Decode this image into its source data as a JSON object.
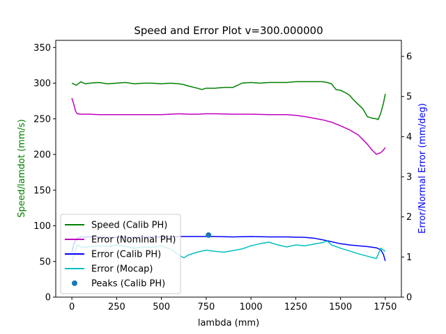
{
  "chart_data": {
    "type": "line",
    "title": "Speed and Error Plot v=300.000000",
    "xlabel": "lambda (mm)",
    "ylabel_left": "Speed/lamdot (mm/s)",
    "ylabel_right": "Error/Normal Error (mm/deg)",
    "ylabel_left_color": "#008000",
    "ylabel_right_color": "#0000ff",
    "xlim": [
      -90,
      1840
    ],
    "ylim_left": [
      0,
      360
    ],
    "ylim_right": [
      0,
      6.4
    ],
    "x_ticks": [
      0,
      250,
      500,
      750,
      1000,
      1250,
      1500,
      1750
    ],
    "x_tick_labels": [
      "0",
      "250",
      "500",
      "750",
      "1000",
      "1250",
      "1500",
      "1750"
    ],
    "y_left_ticks": [
      0,
      50,
      100,
      150,
      200,
      250,
      300,
      350
    ],
    "y_left_tick_labels": [
      "0",
      "50",
      "100",
      "150",
      "200",
      "250",
      "300",
      "350"
    ],
    "y_right_ticks": [
      0,
      1,
      2,
      3,
      4,
      5,
      6
    ],
    "y_right_tick_labels": [
      "0",
      "1",
      "2",
      "3",
      "4",
      "5",
      "6"
    ],
    "grid": false,
    "legend_position": "lower-left",
    "series": [
      {
        "name": "Speed (Calib PH)",
        "color": "#008000",
        "axis": "left",
        "x": [
          0,
          25,
          50,
          75,
          100,
          150,
          200,
          250,
          300,
          350,
          400,
          450,
          500,
          550,
          600,
          625,
          650,
          700,
          725,
          750,
          800,
          850,
          900,
          925,
          950,
          1000,
          1050,
          1100,
          1150,
          1200,
          1250,
          1300,
          1350,
          1400,
          1425,
          1450,
          1475,
          1500,
          1525,
          1550,
          1575,
          1600,
          1625,
          1650,
          1675,
          1700,
          1710,
          1725,
          1740,
          1750
        ],
        "y": [
          300,
          297,
          302,
          299,
          300,
          301,
          299,
          300,
          301,
          299,
          300,
          300,
          299,
          300,
          299,
          298,
          296,
          293,
          291,
          293,
          293,
          294,
          294,
          297,
          300,
          301,
          300,
          301,
          301,
          301,
          302,
          302,
          302,
          302,
          301,
          299,
          291,
          290,
          287,
          283,
          276,
          270,
          264,
          253,
          251,
          250,
          249,
          258,
          272,
          285
        ]
      },
      {
        "name": "Error (Nominal PH)",
        "color": "#bf00bf",
        "axis": "right",
        "x": [
          0,
          10,
          20,
          30,
          50,
          100,
          150,
          200,
          250,
          300,
          400,
          500,
          550,
          600,
          650,
          700,
          750,
          800,
          900,
          1000,
          1100,
          1200,
          1250,
          1300,
          1350,
          1400,
          1450,
          1500,
          1550,
          1600,
          1650,
          1675,
          1700,
          1725,
          1740,
          1750
        ],
        "y": [
          4.96,
          4.82,
          4.64,
          4.57,
          4.56,
          4.56,
          4.55,
          4.55,
          4.55,
          4.55,
          4.55,
          4.55,
          4.56,
          4.57,
          4.56,
          4.56,
          4.57,
          4.57,
          4.56,
          4.56,
          4.55,
          4.55,
          4.53,
          4.5,
          4.46,
          4.42,
          4.36,
          4.27,
          4.17,
          4.04,
          3.81,
          3.67,
          3.56,
          3.6,
          3.67,
          3.73
        ]
      },
      {
        "name": "Error (Calib PH)",
        "color": "#0000ff",
        "axis": "right",
        "x": [
          0,
          10,
          20,
          30,
          50,
          75,
          100,
          150,
          200,
          250,
          300,
          400,
          500,
          600,
          700,
          750,
          800,
          900,
          1000,
          1100,
          1200,
          1300,
          1350,
          1400,
          1450,
          1500,
          1550,
          1600,
          1650,
          1700,
          1725,
          1740,
          1750
        ],
        "y": [
          1.12,
          1.3,
          1.42,
          1.47,
          1.5,
          1.5,
          1.5,
          1.5,
          1.49,
          1.49,
          1.49,
          1.5,
          1.5,
          1.51,
          1.51,
          1.51,
          1.51,
          1.5,
          1.51,
          1.5,
          1.5,
          1.49,
          1.47,
          1.43,
          1.38,
          1.33,
          1.3,
          1.28,
          1.26,
          1.23,
          1.18,
          1.06,
          0.9
        ]
      },
      {
        "name": "Error (Mocap)",
        "color": "#00bfbf",
        "axis": "right",
        "x": [
          0,
          15,
          30,
          50,
          75,
          100,
          150,
          200,
          250,
          300,
          350,
          400,
          450,
          500,
          550,
          600,
          625,
          650,
          700,
          750,
          800,
          850,
          900,
          950,
          1000,
          1050,
          1100,
          1150,
          1200,
          1250,
          1300,
          1350,
          1400,
          1425,
          1450,
          1500,
          1550,
          1600,
          1650,
          1700,
          1725,
          1750
        ],
        "y": [
          0.88,
          1.1,
          1.3,
          1.25,
          1.24,
          1.26,
          1.28,
          1.26,
          1.3,
          1.26,
          1.22,
          1.25,
          1.24,
          1.28,
          1.2,
          1.04,
          0.98,
          1.05,
          1.12,
          1.17,
          1.14,
          1.12,
          1.16,
          1.2,
          1.28,
          1.33,
          1.37,
          1.3,
          1.25,
          1.3,
          1.28,
          1.32,
          1.36,
          1.4,
          1.3,
          1.22,
          1.15,
          1.08,
          1.02,
          0.96,
          1.22,
          1.14
        ]
      }
    ],
    "peaks": {
      "name": "Peaks (Calib PH)",
      "color": "#1f77b4",
      "axis": "left",
      "x": [
        763
      ],
      "y": [
        87
      ]
    }
  }
}
